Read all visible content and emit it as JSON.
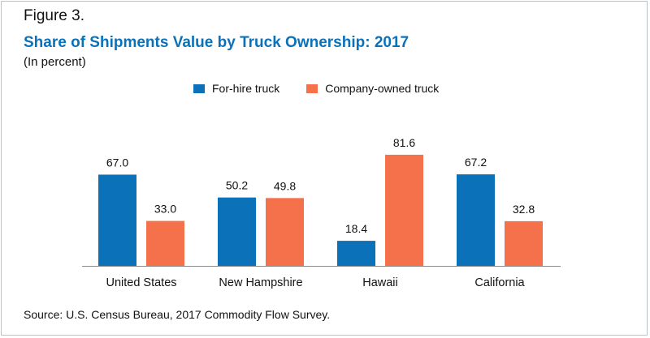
{
  "figure_label": "Figure 3.",
  "source": "Source: U.S. Census Bureau, 2017 Commodity Flow Survey.",
  "chart_data": {
    "type": "bar",
    "title": "Share of Shipments Value by Truck Ownership: 2017",
    "subtitle": "(In percent)",
    "categories": [
      "United States",
      "New Hampshire",
      "Hawaii",
      "California"
    ],
    "series": [
      {
        "name": "For-hire truck",
        "color": "#0b71b9",
        "values": [
          67.0,
          50.2,
          18.4,
          67.2
        ]
      },
      {
        "name": "Company-owned truck",
        "color": "#f4714c",
        "values": [
          33.0,
          49.8,
          81.6,
          32.8
        ]
      }
    ],
    "ylim": [
      0,
      100
    ],
    "grid": false,
    "legend_position": "top-center"
  }
}
